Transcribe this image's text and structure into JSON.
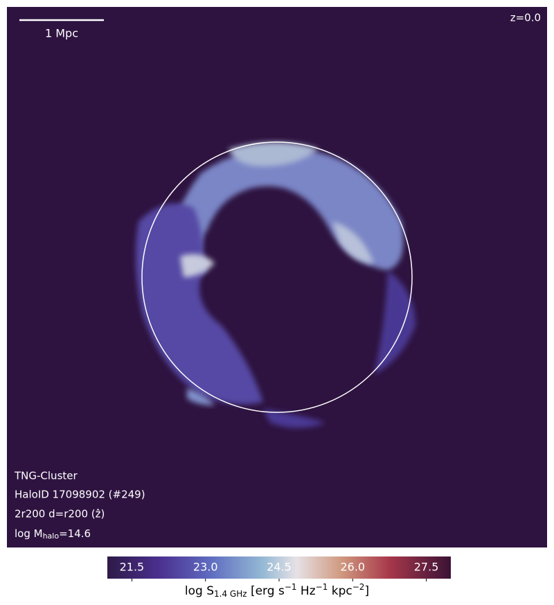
{
  "image": {
    "scale_bar": "1 Mpc",
    "redshift": "z=0.0",
    "info": [
      "TNG-Cluster",
      "HaloID 17098902 (#249)",
      "2r200 d=r200 (ẑ)"
    ],
    "mass_label": {
      "prefix": "log M",
      "sub": "halo",
      "suffix": "=14.6"
    }
  },
  "colorbar": {
    "clim": [
      21,
      28
    ],
    "ticks": [
      21.5,
      23.0,
      24.5,
      26.0,
      27.5
    ],
    "label": {
      "prefix": "log S",
      "sub": "1.4 GHz",
      "part1": " [erg s",
      "sup1": "−1",
      "part2": " Hz",
      "sup2": "−1",
      "part3": " kpc",
      "sup3": "−2",
      "suffix": "]"
    }
  }
}
